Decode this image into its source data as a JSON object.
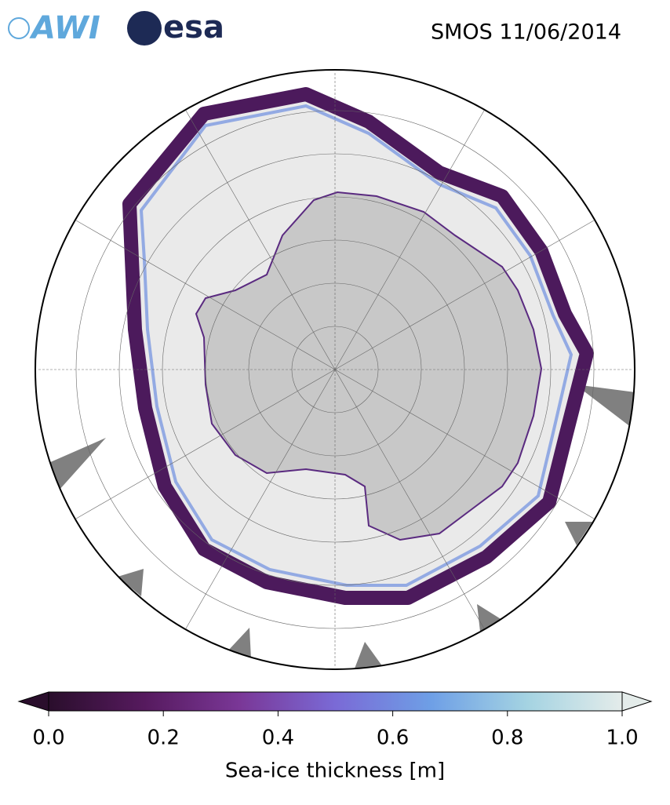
{
  "header": {
    "logo_awi": "AWI",
    "logo_esa": "esa",
    "title": "SMOS 11/06/2014"
  },
  "colorbar": {
    "label": "Sea-ice thickness [m]",
    "lim": [
      0,
      1
    ],
    "ticks": [
      {
        "value": 0,
        "label": "0.0"
      },
      {
        "value": 0.2,
        "label": "0.2"
      },
      {
        "value": 0.4,
        "label": "0.4"
      },
      {
        "value": 0.6,
        "label": "0.6"
      },
      {
        "value": 0.8,
        "label": "0.8"
      },
      {
        "value": 1,
        "label": "1.0"
      }
    ],
    "colormap": [
      "#2a0e2c",
      "#561a5e",
      "#7a3797",
      "#7a6ad6",
      "#6e9fe6",
      "#a4d3e2",
      "#e4ecea"
    ]
  }
}
